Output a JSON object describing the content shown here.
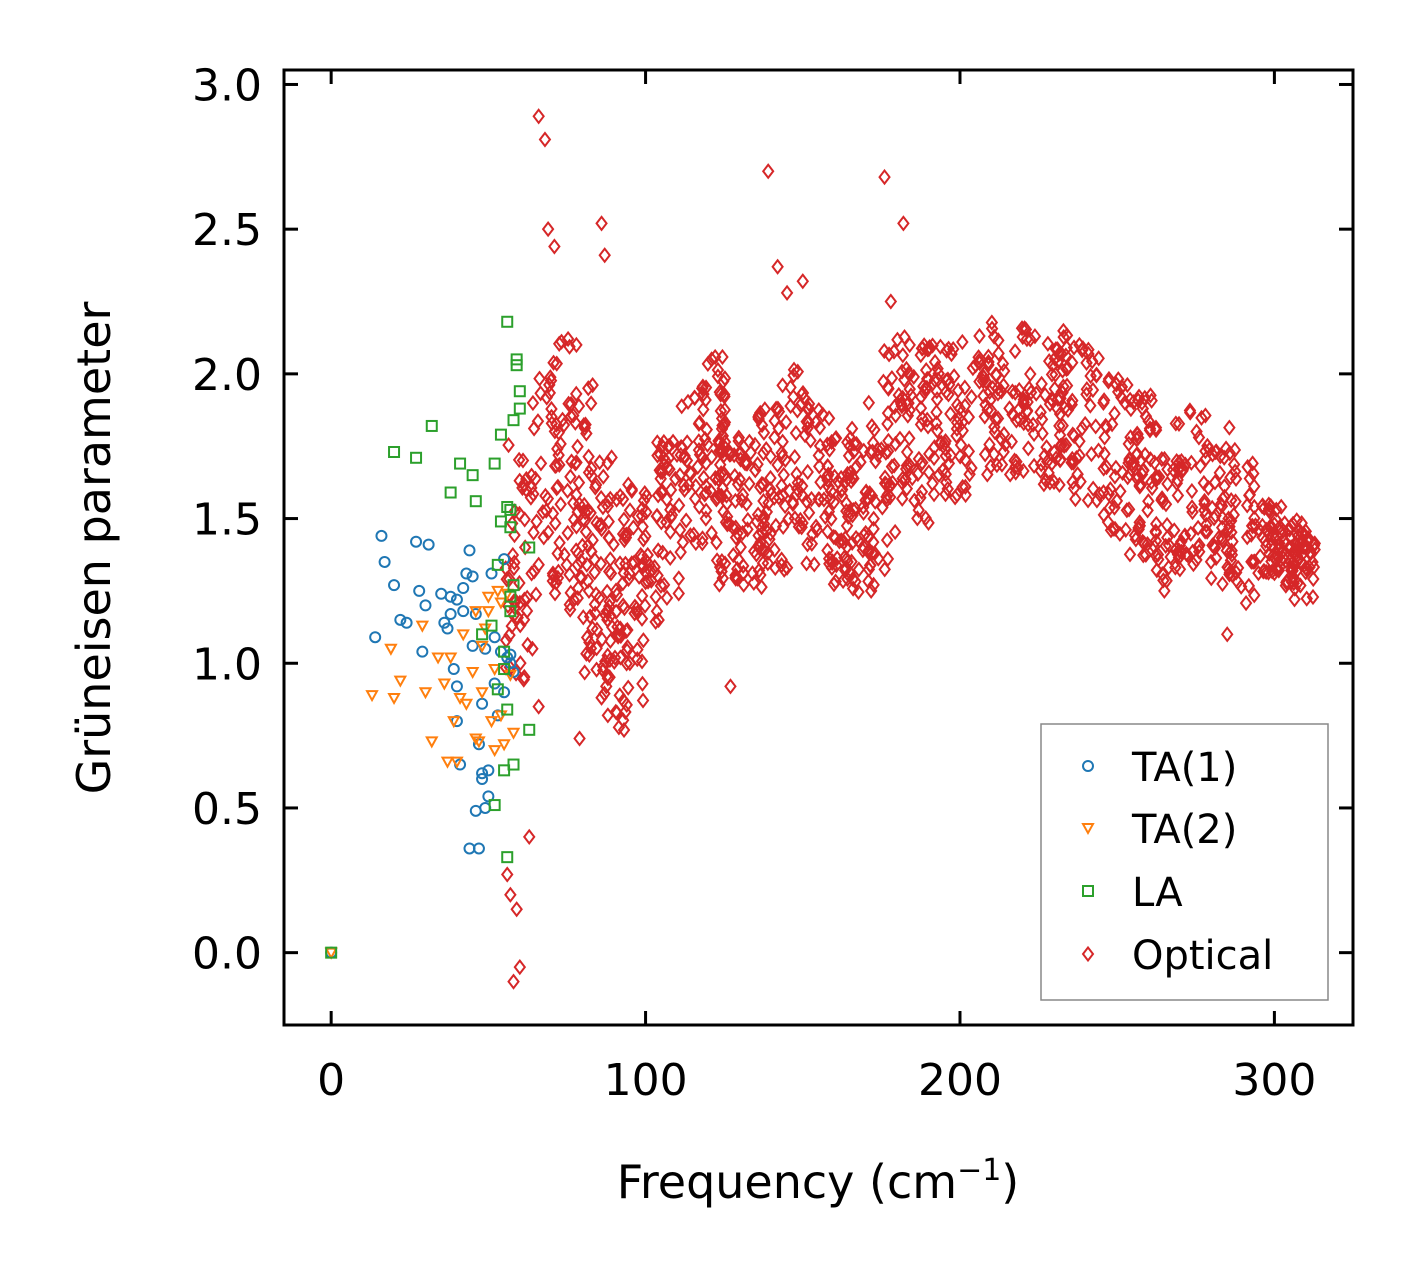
{
  "chart_data": {
    "type": "scatter",
    "title": "",
    "xlabel": "Frequency (cm",
    "xlabel_sup": "−1",
    "xlabel_close": ")",
    "ylabel": "Grüneisen parameter",
    "xlim": [
      -15,
      325
    ],
    "ylim": [
      -0.25,
      3.05
    ],
    "xticks": [
      0,
      100,
      200,
      300
    ],
    "xtick_labels": [
      "0",
      "100",
      "200",
      "300"
    ],
    "yticks": [
      0.0,
      0.5,
      1.0,
      1.5,
      2.0,
      2.5,
      3.0
    ],
    "ytick_labels": [
      "0.0",
      "0.5",
      "1.0",
      "1.5",
      "2.0",
      "2.5",
      "3.0"
    ],
    "grid": false,
    "legend_position": "lower-right",
    "series": [
      {
        "name": "TA(1)",
        "marker": "circle",
        "color": "#1f77b4",
        "x": [
          0,
          14,
          16,
          17,
          20,
          22,
          24,
          27,
          28,
          29,
          30,
          31,
          35,
          36,
          38,
          38,
          39,
          40,
          40,
          41,
          42,
          43,
          44,
          45,
          45,
          46,
          47,
          48,
          48,
          49,
          49,
          50,
          51,
          52,
          53,
          54,
          55,
          55,
          56,
          57,
          57,
          58,
          44,
          47,
          50,
          46,
          48,
          52,
          37,
          40,
          42
        ],
        "y": [
          0,
          1.09,
          1.44,
          1.35,
          1.27,
          1.15,
          1.14,
          1.42,
          1.25,
          1.04,
          1.2,
          1.41,
          1.24,
          1.14,
          1.23,
          1.17,
          0.98,
          1.22,
          0.92,
          0.65,
          1.18,
          1.31,
          1.39,
          1.3,
          1.06,
          1.17,
          0.72,
          0.86,
          0.6,
          1.05,
          0.5,
          0.63,
          1.31,
          0.93,
          0.82,
          1.04,
          0.9,
          1.36,
          1.02,
          1.03,
          1.0,
          0.97,
          0.36,
          0.36,
          0.54,
          0.49,
          0.62,
          1.09,
          1.12,
          0.8,
          1.26
        ]
      },
      {
        "name": "TA(2)",
        "marker": "triangle-down",
        "color": "#ff7f0e",
        "x": [
          0,
          13,
          19,
          20,
          22,
          29,
          30,
          32,
          34,
          36,
          37,
          38,
          39,
          40,
          41,
          42,
          43,
          45,
          46,
          47,
          48,
          49,
          50,
          51,
          52,
          53,
          54,
          55,
          56,
          57,
          58,
          46,
          48,
          50,
          52,
          54
        ],
        "y": [
          0,
          0.89,
          1.05,
          0.88,
          0.94,
          1.13,
          0.9,
          0.73,
          1.02,
          0.93,
          0.66,
          1.02,
          0.8,
          0.66,
          0.88,
          1.1,
          0.86,
          0.97,
          1.18,
          0.73,
          1.06,
          1.12,
          1.23,
          0.8,
          0.98,
          1.25,
          0.82,
          0.72,
          1.24,
          0.96,
          0.76,
          0.74,
          0.9,
          1.18,
          0.7,
          1.21
        ]
      },
      {
        "name": "LA",
        "marker": "square",
        "color": "#2ca02c",
        "x": [
          0,
          20,
          27,
          32,
          38,
          41,
          45,
          46,
          48,
          52,
          54,
          56,
          57,
          58,
          59,
          59,
          60,
          60,
          63,
          63,
          51,
          53,
          55,
          56,
          57,
          54,
          56,
          58,
          52,
          55,
          57,
          53,
          55,
          56,
          58,
          57
        ],
        "y": [
          0,
          1.73,
          1.71,
          1.82,
          1.59,
          1.69,
          1.65,
          1.56,
          1.1,
          1.69,
          1.79,
          2.18,
          1.53,
          1.84,
          2.05,
          2.03,
          1.94,
          1.88,
          1.4,
          0.77,
          1.13,
          0.91,
          0.63,
          0.33,
          1.23,
          1.49,
          1.54,
          1.27,
          0.51,
          1.04,
          1.18,
          1.34,
          0.98,
          0.84,
          0.65,
          1.47
        ]
      },
      {
        "name": "Optical",
        "marker": "diamond",
        "color": "#d62728",
        "x": [
          66,
          68,
          139,
          176,
          86,
          69,
          71,
          142,
          145,
          150,
          182,
          87,
          62,
          64,
          58,
          60,
          57,
          59,
          56,
          63,
          66,
          79,
          127,
          285,
          95,
          100,
          104,
          110,
          118,
          121,
          126,
          133,
          141,
          147,
          152,
          158,
          165,
          171,
          178,
          184,
          193,
          205,
          212,
          222,
          231,
          238,
          246,
          255,
          266,
          276,
          283,
          292,
          300,
          306,
          310,
          78,
          82,
          88,
          92,
          121,
          137,
          145,
          170,
          265,
          300
        ],
        "y": [
          2.89,
          2.81,
          2.7,
          2.68,
          2.52,
          2.5,
          2.44,
          2.37,
          2.28,
          2.32,
          2.52,
          2.41,
          1.6,
          1.05,
          -0.1,
          -0.05,
          0.2,
          0.15,
          0.27,
          0.4,
          0.85,
          0.74,
          0.92,
          1.1,
          1.0,
          1.28,
          1.58,
          1.72,
          1.95,
          2.05,
          1.48,
          1.62,
          1.78,
          1.92,
          1.52,
          1.68,
          1.75,
          1.9,
          2.25,
          2.1,
          1.98,
          2.03,
          1.95,
          1.95,
          1.88,
          2.1,
          1.78,
          1.68,
          1.62,
          1.78,
          1.55,
          1.58,
          1.48,
          1.38,
          1.33,
          2.1,
          1.25,
          0.82,
          1.02,
          1.45,
          1.62,
          1.33,
          1.45,
          1.25,
          1.43
        ]
      }
    ]
  }
}
